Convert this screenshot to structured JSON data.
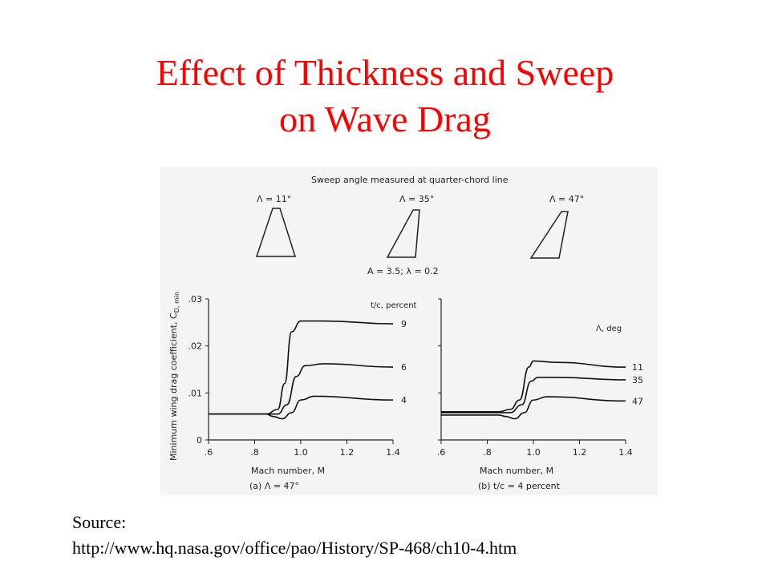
{
  "slide": {
    "title_line1": "Effect of Thickness and Sweep",
    "title_line2": "on Wave Drag",
    "source_label": "Source:",
    "source_url": "http://www.hq.nasa.gov/office/pao/History/SP-468/ch10-4.htm"
  },
  "planforms": {
    "header": "Sweep angle measured at quarter-chord line",
    "labels": [
      "Λ = 11°",
      "Λ = 35°",
      "Λ = 47°"
    ],
    "params": "A = 3.5; λ = 0.2"
  },
  "chart_data": [
    {
      "type": "line",
      "ylabel": "Minimum wing drag coefficient, C",
      "ylabel_sub": "D, min",
      "xlabel": "Mach number, M",
      "caption": "(a) Λ = 47°",
      "legend_title": "t/c, percent",
      "xlim": [
        0.6,
        1.4
      ],
      "ylim": [
        0,
        0.03
      ],
      "x_ticks": [
        ".6",
        ".8",
        "1.0",
        "1.2",
        "1.4"
      ],
      "y_ticks": [
        "0",
        ".01",
        ".02",
        ".03"
      ],
      "series": [
        {
          "name": "9",
          "x": [
            0.6,
            0.85,
            0.9,
            0.93,
            0.96,
            1.0,
            1.1,
            1.4
          ],
          "y": [
            0.0055,
            0.0055,
            0.0065,
            0.012,
            0.023,
            0.0253,
            0.0253,
            0.0247
          ]
        },
        {
          "name": "6",
          "x": [
            0.6,
            0.85,
            0.9,
            0.94,
            0.98,
            1.02,
            1.1,
            1.4
          ],
          "y": [
            0.0055,
            0.0055,
            0.0055,
            0.0075,
            0.0135,
            0.0158,
            0.0162,
            0.0155
          ]
        },
        {
          "name": "4",
          "x": [
            0.6,
            0.85,
            0.88,
            0.92,
            0.96,
            1.0,
            1.06,
            1.4
          ],
          "y": [
            0.0055,
            0.0055,
            0.005,
            0.0045,
            0.0058,
            0.0085,
            0.0093,
            0.0085
          ]
        }
      ]
    },
    {
      "type": "line",
      "xlabel": "Mach number, M",
      "caption": "(b) t/c = 4 percent",
      "legend_title": "Λ, deg",
      "xlim": [
        0.6,
        1.4
      ],
      "ylim": [
        0,
        0.03
      ],
      "x_ticks": [
        ".6",
        ".8",
        "1.0",
        "1.2",
        "1.4"
      ],
      "series": [
        {
          "name": "11",
          "x": [
            0.6,
            0.85,
            0.9,
            0.94,
            0.98,
            1.0,
            1.1,
            1.4
          ],
          "y": [
            0.006,
            0.006,
            0.0065,
            0.0085,
            0.0155,
            0.0168,
            0.0165,
            0.0155
          ]
        },
        {
          "name": "35",
          "x": [
            0.6,
            0.85,
            0.9,
            0.95,
            0.99,
            1.02,
            1.1,
            1.4
          ],
          "y": [
            0.0058,
            0.0058,
            0.0058,
            0.0075,
            0.0125,
            0.0133,
            0.0133,
            0.0128
          ]
        },
        {
          "name": "47",
          "x": [
            0.6,
            0.85,
            0.88,
            0.92,
            0.96,
            1.0,
            1.06,
            1.4
          ],
          "y": [
            0.0053,
            0.0053,
            0.005,
            0.0045,
            0.0058,
            0.0085,
            0.0092,
            0.0083
          ]
        }
      ]
    }
  ]
}
